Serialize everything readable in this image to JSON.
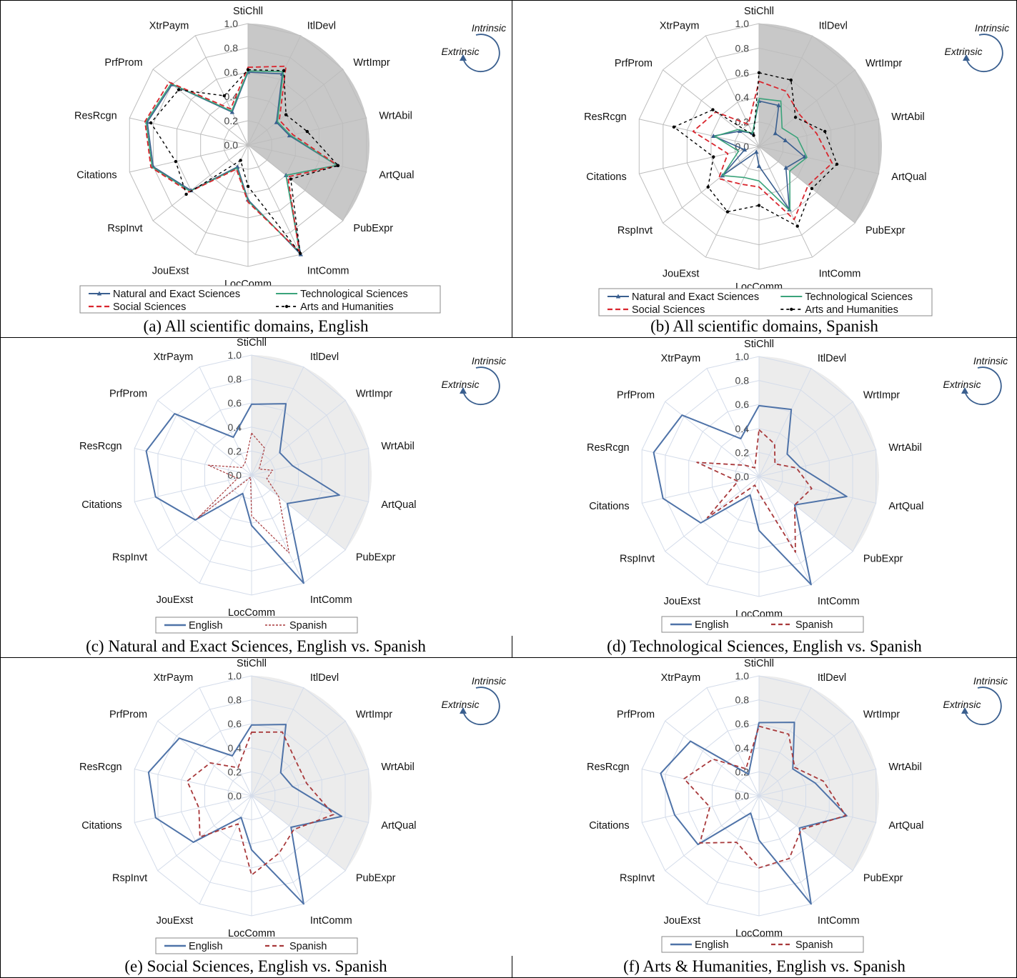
{
  "axes": [
    "StiChll",
    "ItlDevl",
    "WrtImpr",
    "WrtAbil",
    "ArtQual",
    "PubExpr",
    "IntComm",
    "LocComm",
    "JouExst",
    "RspInvt",
    "Citations",
    "ResRcgn",
    "PrfProm",
    "XtrPaym"
  ],
  "tick_labels": [
    "0.0",
    "0.2",
    "0.4",
    "0.6",
    "0.8",
    "1.0"
  ],
  "direction_labels": {
    "intrinsic": "Intrinsic",
    "extrinsic": "Extrinsic"
  },
  "colors": {
    "natural": "#3a5f8f",
    "technological": "#3aa37a",
    "social": "#d9262e",
    "arts": "#000000",
    "english": "#4f73a8",
    "spanish": "#a8393b",
    "sector_dark": "#c8c8c8",
    "sector_light": "#ececec"
  },
  "chart_data": [
    {
      "type": "radar",
      "caption": "(a) All scientific domains, English",
      "r_range": [
        0,
        1
      ],
      "intrinsic_sector_axes": [
        "StiChll",
        "ItlDevl",
        "WrtImpr",
        "WrtAbil",
        "ArtQual",
        "PubExpr"
      ],
      "series": [
        {
          "name": "Natural and Exact Sciences",
          "style": "natural",
          "values": [
            0.6,
            0.65,
            0.3,
            0.35,
            0.75,
            0.4,
            1.0,
            0.45,
            0.2,
            0.6,
            0.8,
            0.85,
            0.8,
            0.3
          ]
        },
        {
          "name": "Technological Sciences",
          "style": "technological",
          "values": [
            0.61,
            0.67,
            0.31,
            0.36,
            0.75,
            0.4,
            0.98,
            0.46,
            0.21,
            0.61,
            0.81,
            0.86,
            0.81,
            0.31
          ]
        },
        {
          "name": "Social Sciences",
          "style": "social",
          "values": [
            0.64,
            0.72,
            0.33,
            0.38,
            0.76,
            0.42,
            0.97,
            0.47,
            0.22,
            0.62,
            0.82,
            0.87,
            0.83,
            0.33
          ]
        },
        {
          "name": "Arts and Humanities",
          "style": "arts",
          "values": [
            0.62,
            0.68,
            0.4,
            0.5,
            0.76,
            0.45,
            0.99,
            0.34,
            0.14,
            0.65,
            0.61,
            0.82,
            0.73,
            0.45
          ]
        }
      ],
      "legend": [
        "Natural and Exact Sciences",
        "Technological Sciences",
        "Social Sciences",
        "Arts and Humanities"
      ]
    },
    {
      "type": "radar",
      "caption": "(b) All scientific domains, Spanish",
      "r_range": [
        0,
        1
      ],
      "intrinsic_sector_axes": [
        "StiChll",
        "ItlDevl",
        "WrtImpr",
        "WrtAbil",
        "ArtQual",
        "PubExpr"
      ],
      "series": [
        {
          "name": "Natural and Exact Sciences",
          "style": "natural",
          "values": [
            0.37,
            0.37,
            0.17,
            0.22,
            0.38,
            0.28,
            0.57,
            0.16,
            0.05,
            0.38,
            0.12,
            0.38,
            0.2,
            0.12
          ]
        },
        {
          "name": "Technological Sciences",
          "style": "technological",
          "values": [
            0.39,
            0.41,
            0.24,
            0.32,
            0.4,
            0.32,
            0.58,
            0.28,
            0.28,
            0.38,
            0.17,
            0.37,
            0.22,
            0.12
          ]
        },
        {
          "name": "Social Sciences",
          "style": "social",
          "values": [
            0.53,
            0.5,
            0.42,
            0.48,
            0.61,
            0.51,
            0.66,
            0.33,
            0.34,
            0.42,
            0.26,
            0.55,
            0.45,
            0.2
          ]
        },
        {
          "name": "Arts and Humanities",
          "style": "arts",
          "values": [
            0.6,
            0.6,
            0.38,
            0.55,
            0.65,
            0.55,
            0.72,
            0.48,
            0.59,
            0.53,
            0.38,
            0.71,
            0.48,
            0.1
          ]
        }
      ],
      "legend": [
        "Natural and Exact Sciences",
        "Technological Sciences",
        "Social Sciences",
        "Arts and Humanities"
      ]
    },
    {
      "type": "radar",
      "caption": "(c) Natural and Exact Sciences, English vs. Spanish",
      "r_range": [
        0,
        1
      ],
      "intrinsic_sector_axes": [
        "StiChll",
        "ItlDevl",
        "WrtImpr",
        "WrtAbil",
        "ArtQual",
        "PubExpr"
      ],
      "series": [
        {
          "name": "English",
          "style": "english",
          "values": [
            0.59,
            0.66,
            0.3,
            0.35,
            0.75,
            0.38,
            1.0,
            0.42,
            0.17,
            0.6,
            0.82,
            0.9,
            0.82,
            0.35
          ]
        },
        {
          "name": "Spanish",
          "style": "spanish_dotted",
          "values": [
            0.35,
            0.25,
            0.08,
            0.18,
            0.13,
            0.29,
            0.72,
            0.34,
            0.02,
            0.57,
            0.12,
            0.37,
            0.1,
            0.12
          ]
        }
      ],
      "legend": [
        "English",
        "Spanish"
      ]
    },
    {
      "type": "radar",
      "caption": "(d) Technological Sciences, English vs. Spanish",
      "r_range": [
        0,
        1
      ],
      "intrinsic_sector_axes": [
        "StiChll",
        "ItlDevl",
        "WrtImpr",
        "WrtAbil",
        "ArtQual",
        "PubExpr"
      ],
      "series": [
        {
          "name": "English",
          "style": "english",
          "values": [
            0.59,
            0.62,
            0.3,
            0.35,
            0.75,
            0.38,
            1.0,
            0.45,
            0.17,
            0.62,
            0.82,
            0.9,
            0.82,
            0.35
          ]
        },
        {
          "name": "Spanish",
          "style": "spanish",
          "values": [
            0.39,
            0.3,
            0.17,
            0.32,
            0.45,
            0.38,
            0.7,
            0.14,
            0.08,
            0.55,
            0.18,
            0.53,
            0.15,
            0.08
          ]
        }
      ],
      "legend": [
        "English",
        "Spanish"
      ]
    },
    {
      "type": "radar",
      "caption": "(e) Social Sciences, English vs. Spanish",
      "r_range": [
        0,
        1
      ],
      "intrinsic_sector_axes": [
        "StiChll",
        "ItlDevl",
        "WrtImpr",
        "WrtAbil",
        "ArtQual",
        "PubExpr"
      ],
      "series": [
        {
          "name": "English",
          "style": "english",
          "values": [
            0.59,
            0.66,
            0.31,
            0.35,
            0.77,
            0.42,
            1.0,
            0.45,
            0.2,
            0.62,
            0.82,
            0.88,
            0.77,
            0.37
          ]
        },
        {
          "name": "Spanish",
          "style": "spanish",
          "values": [
            0.53,
            0.59,
            0.47,
            0.47,
            0.7,
            0.45,
            0.53,
            0.66,
            0.26,
            0.55,
            0.45,
            0.55,
            0.44,
            0.26
          ]
        }
      ],
      "legend": [
        "English",
        "Spanish"
      ]
    },
    {
      "type": "radar",
      "caption": "(f) Arts & Humanities, English vs. Spanish",
      "r_range": [
        0,
        1
      ],
      "intrinsic_sector_axes": [
        "StiChll",
        "ItlDevl",
        "WrtImpr",
        "WrtAbil",
        "ArtQual",
        "PubExpr"
      ],
      "series": [
        {
          "name": "English",
          "style": "english",
          "values": [
            0.61,
            0.68,
            0.36,
            0.48,
            0.75,
            0.43,
            1.0,
            0.37,
            0.16,
            0.65,
            0.72,
            0.84,
            0.73,
            0.2
          ]
        },
        {
          "name": "Spanish",
          "style": "spanish",
          "values": [
            0.58,
            0.57,
            0.38,
            0.55,
            0.74,
            0.45,
            0.58,
            0.6,
            0.43,
            0.63,
            0.42,
            0.64,
            0.49,
            0.25
          ]
        }
      ],
      "legend": [
        "English",
        "Spanish"
      ]
    }
  ]
}
